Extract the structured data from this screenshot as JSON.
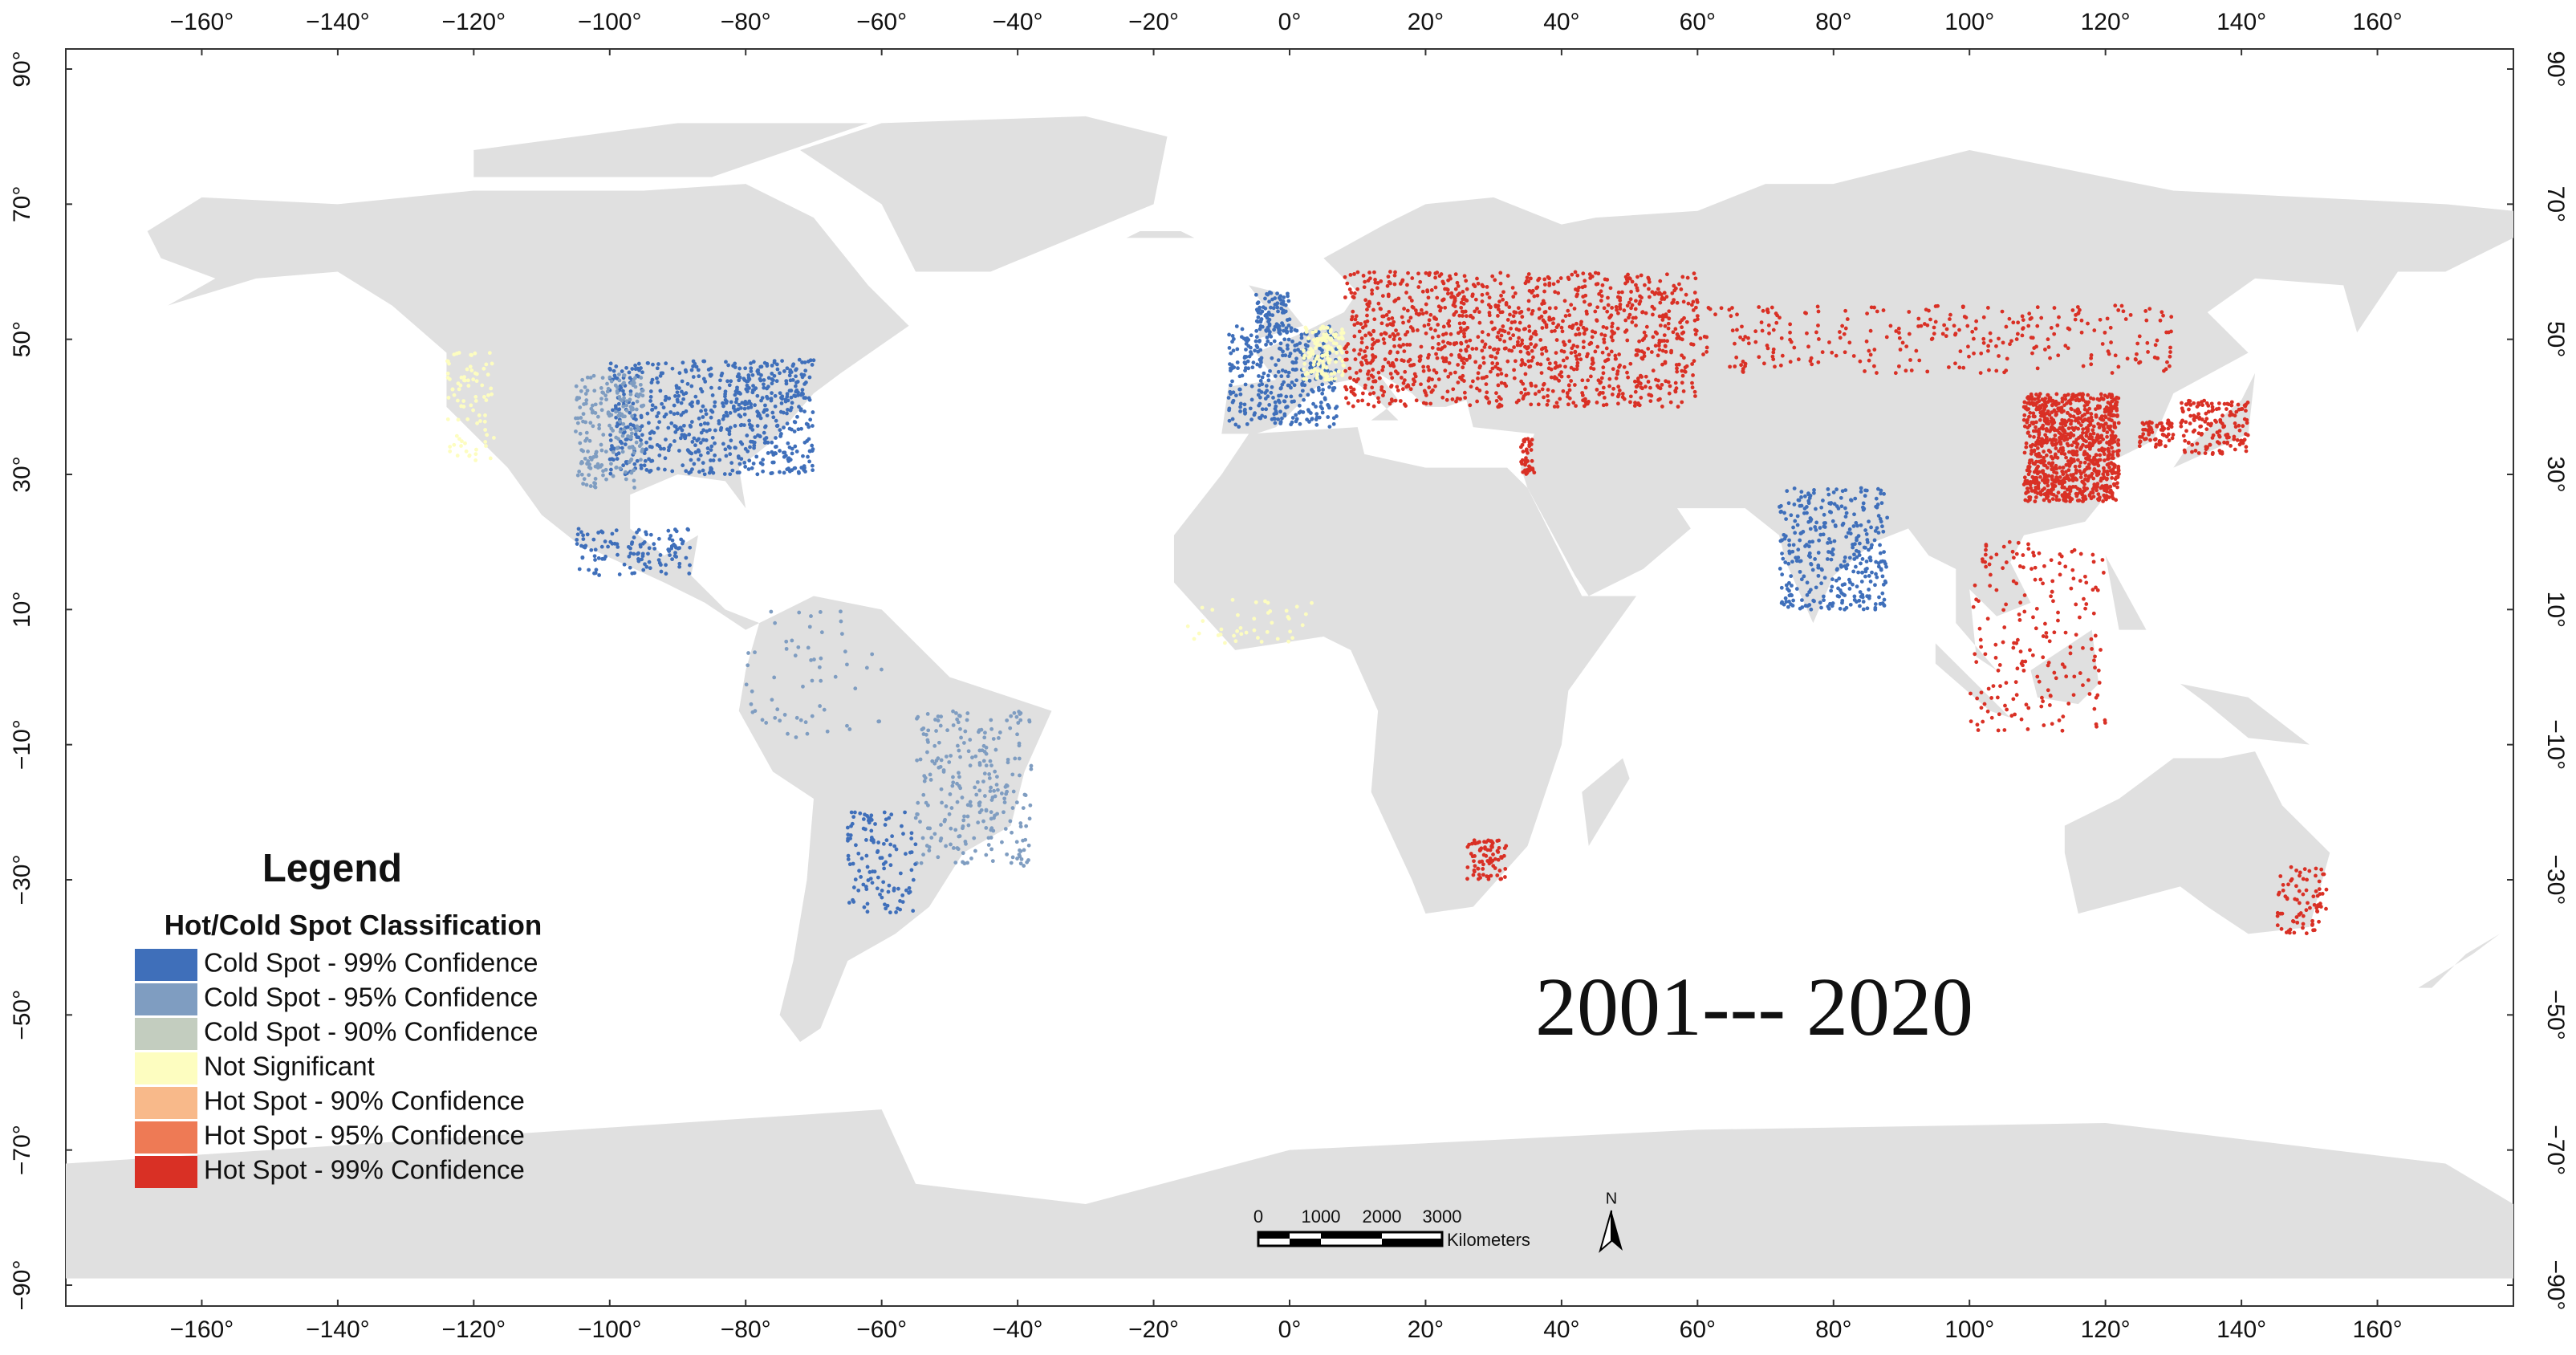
{
  "map": {
    "lon_ticks": [
      {
        "value": -160,
        "label": "−160°"
      },
      {
        "value": -140,
        "label": "−140°"
      },
      {
        "value": -120,
        "label": "−120°"
      },
      {
        "value": -100,
        "label": "−100°"
      },
      {
        "value": -80,
        "label": "−80°"
      },
      {
        "value": -60,
        "label": "−60°"
      },
      {
        "value": -40,
        "label": "−40°"
      },
      {
        "value": -20,
        "label": "−20°"
      },
      {
        "value": 0,
        "label": "0°"
      },
      {
        "value": 20,
        "label": "20°"
      },
      {
        "value": 40,
        "label": "40°"
      },
      {
        "value": 60,
        "label": "60°"
      },
      {
        "value": 80,
        "label": "80°"
      },
      {
        "value": 100,
        "label": "100°"
      },
      {
        "value": 120,
        "label": "120°"
      },
      {
        "value": 140,
        "label": "140°"
      },
      {
        "value": 160,
        "label": "160°"
      }
    ],
    "lat_ticks": [
      {
        "value": 90,
        "label": "90°"
      },
      {
        "value": 70,
        "label": "70°"
      },
      {
        "value": 50,
        "label": "50°"
      },
      {
        "value": 30,
        "label": "30°"
      },
      {
        "value": 10,
        "label": "10°"
      },
      {
        "value": -10,
        "label": "−10°"
      },
      {
        "value": -30,
        "label": "−30°"
      },
      {
        "value": -50,
        "label": "−50°"
      },
      {
        "value": -70,
        "label": "−70°"
      },
      {
        "value": -90,
        "label": "−90°"
      }
    ],
    "legend": {
      "title": "Legend",
      "subtitle": "Hot/Cold Spot Classification",
      "items": [
        {
          "label": "Cold Spot - 99% Confidence",
          "color": "#3f6fba"
        },
        {
          "label": "Cold Spot - 95% Confidence",
          "color": "#7f9dc1"
        },
        {
          "label": "Cold Spot - 90% Confidence",
          "color": "#c3cdbf"
        },
        {
          "label": "Not Significant",
          "color": "#fdfdc0"
        },
        {
          "label": "Hot Spot - 90% Confidence",
          "color": "#f8b98a"
        },
        {
          "label": "Hot Spot - 95% Confidence",
          "color": "#ee7a55"
        },
        {
          "label": "Hot Spot - 99% Confidence",
          "color": "#d93025"
        }
      ]
    },
    "period": "2001--- 2020",
    "scale_bar": {
      "ticks": [
        "0",
        "1000",
        "2000",
        "3000"
      ],
      "unit": "Kilometers"
    },
    "north": "N"
  }
}
